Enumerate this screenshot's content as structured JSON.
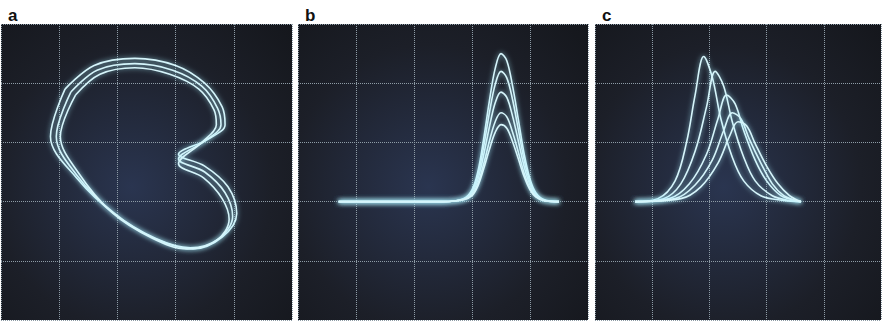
{
  "chart_data": [
    {
      "type": "line",
      "title": "a",
      "grid": true,
      "tick_labels": false,
      "marker": "none",
      "color": "#d6f5fb",
      "xlim": [
        -3,
        2
      ],
      "ylim": [
        -3,
        2
      ],
      "xticks": [
        -3,
        -2,
        -1,
        0,
        1,
        2
      ],
      "yticks": [
        -3,
        -2,
        -1,
        0,
        1,
        2
      ],
      "series": [
        {
          "x": [
            -1.9,
            -1.4,
            -0.7,
            0,
            0.5,
            0.8,
            0.85,
            0.55,
            0.05,
            0.5,
            0.9,
            1.05,
            0.8,
            0.3,
            -0.3,
            -1.0,
            -1.7,
            -2.15,
            -1.9
          ],
          "values": [
            0.9,
            1.3,
            1.42,
            1.3,
            1.0,
            0.6,
            0.3,
            0.05,
            -0.2,
            -0.4,
            -0.75,
            -1.2,
            -1.6,
            -1.8,
            -1.65,
            -1.25,
            -0.6,
            0.1,
            0.9
          ]
        },
        {
          "x": [
            -1.8,
            -1.35,
            -0.7,
            -0.05,
            0.45,
            0.72,
            0.78,
            0.5,
            0.05,
            0.5,
            0.85,
            0.98,
            0.75,
            0.25,
            -0.35,
            -1.05,
            -1.7,
            -2.05,
            -1.8
          ],
          "values": [
            0.85,
            1.22,
            1.33,
            1.22,
            0.95,
            0.58,
            0.3,
            0.02,
            -0.28,
            -0.5,
            -0.85,
            -1.25,
            -1.62,
            -1.78,
            -1.62,
            -1.2,
            -0.55,
            0.1,
            0.85
          ]
        },
        {
          "x": [
            -1.72,
            -1.3,
            -0.7,
            -0.1,
            0.4,
            0.66,
            0.7,
            0.45,
            0.05,
            0.48,
            0.8,
            0.92,
            0.7,
            0.2,
            -0.4,
            -1.1,
            -1.68,
            -1.98,
            -1.72
          ],
          "values": [
            0.8,
            1.15,
            1.26,
            1.15,
            0.9,
            0.55,
            0.3,
            0.0,
            -0.36,
            -0.6,
            -0.95,
            -1.3,
            -1.66,
            -1.8,
            -1.62,
            -1.18,
            -0.5,
            0.1,
            0.8
          ]
        }
      ]
    },
    {
      "type": "line",
      "title": "b",
      "grid": true,
      "tick_labels": false,
      "marker": "none",
      "color": "#d6f5fb",
      "xlim": [
        -2,
        3
      ],
      "ylim": [
        -2,
        3
      ],
      "xticks": [
        -2,
        -1,
        0,
        1,
        2,
        3
      ],
      "yticks": [
        -2,
        -1,
        0,
        1,
        2,
        3
      ],
      "series": [
        {
          "x": [
            -1.3,
            0.5,
            0.85,
            1.0,
            1.1,
            1.2,
            1.3,
            1.4,
            1.5,
            1.6,
            1.7,
            1.8,
            1.9,
            2.0,
            2.1,
            2.25,
            2.5
          ],
          "values": [
            0,
            0,
            0.05,
            0.2,
            0.5,
            1.05,
            1.7,
            2.25,
            2.5,
            2.38,
            1.95,
            1.38,
            0.8,
            0.38,
            0.15,
            0.03,
            0
          ]
        },
        {
          "x": [
            -1.3,
            0.5,
            0.85,
            1.0,
            1.1,
            1.2,
            1.3,
            1.4,
            1.5,
            1.6,
            1.7,
            1.8,
            1.9,
            2.0,
            2.1,
            2.25,
            2.5
          ],
          "values": [
            0,
            0,
            0.04,
            0.18,
            0.44,
            0.92,
            1.5,
            1.98,
            2.2,
            2.09,
            1.72,
            1.21,
            0.7,
            0.33,
            0.13,
            0.02,
            0
          ]
        },
        {
          "x": [
            -1.3,
            0.5,
            0.85,
            1.0,
            1.1,
            1.2,
            1.3,
            1.4,
            1.5,
            1.6,
            1.7,
            1.8,
            1.9,
            2.0,
            2.1,
            2.25,
            2.5
          ],
          "values": [
            0,
            0,
            0.04,
            0.15,
            0.37,
            0.78,
            1.26,
            1.67,
            1.85,
            1.76,
            1.44,
            1.02,
            0.59,
            0.28,
            0.11,
            0.02,
            0
          ]
        },
        {
          "x": [
            -1.3,
            0.5,
            0.85,
            1.0,
            1.1,
            1.2,
            1.3,
            1.4,
            1.5,
            1.6,
            1.7,
            1.8,
            1.9,
            2.0,
            2.1,
            2.25,
            2.5
          ],
          "values": [
            0,
            0,
            0.03,
            0.12,
            0.3,
            0.63,
            1.02,
            1.35,
            1.5,
            1.43,
            1.17,
            0.83,
            0.48,
            0.23,
            0.09,
            0.02,
            0
          ]
        },
        {
          "x": [
            -1.3,
            0.5,
            0.85,
            1.0,
            1.1,
            1.2,
            1.3,
            1.4,
            1.5,
            1.6,
            1.7,
            1.8,
            1.9,
            2.0,
            2.1,
            2.25,
            2.5
          ],
          "values": [
            0,
            0,
            0.03,
            0.1,
            0.26,
            0.55,
            0.88,
            1.17,
            1.3,
            1.24,
            1.01,
            0.72,
            0.42,
            0.2,
            0.08,
            0.01,
            0
          ]
        }
      ]
    },
    {
      "type": "line",
      "title": "c",
      "grid": true,
      "tick_labels": false,
      "marker": "none",
      "color": "#d6f5fb",
      "xlim": [
        -2,
        3
      ],
      "ylim": [
        -2,
        3
      ],
      "xticks": [
        -2,
        -1,
        0,
        1,
        2,
        3
      ],
      "yticks": [
        -2,
        -1,
        0,
        1,
        2,
        3
      ],
      "series": [
        {
          "x": [
            -1.3,
            -0.9,
            -0.6,
            -0.4,
            -0.25,
            -0.1,
            0.05,
            0.2,
            0.4,
            0.6,
            0.9,
            1.3,
            1.6
          ],
          "values": [
            0,
            0.05,
            0.35,
            1.0,
            1.8,
            2.45,
            2.1,
            1.4,
            0.75,
            0.35,
            0.1,
            0.02,
            0
          ]
        },
        {
          "x": [
            -1.3,
            -0.8,
            -0.5,
            -0.25,
            -0.05,
            0.1,
            0.25,
            0.4,
            0.6,
            0.8,
            1.1,
            1.4,
            1.6
          ],
          "values": [
            0,
            0.05,
            0.3,
            0.85,
            1.6,
            2.2,
            1.95,
            1.35,
            0.75,
            0.35,
            0.1,
            0.02,
            0
          ]
        },
        {
          "x": [
            -1.3,
            -0.7,
            -0.35,
            -0.05,
            0.15,
            0.3,
            0.45,
            0.6,
            0.8,
            1.0,
            1.25,
            1.5,
            1.6
          ],
          "values": [
            0,
            0.05,
            0.3,
            0.8,
            1.4,
            1.8,
            1.65,
            1.2,
            0.7,
            0.35,
            0.1,
            0.02,
            0
          ]
        },
        {
          "x": [
            -1.3,
            -0.6,
            -0.25,
            0.05,
            0.25,
            0.4,
            0.55,
            0.7,
            0.9,
            1.1,
            1.3,
            1.5,
            1.6
          ],
          "values": [
            0,
            0.05,
            0.28,
            0.7,
            1.2,
            1.5,
            1.4,
            1.05,
            0.65,
            0.3,
            0.1,
            0.02,
            0
          ]
        },
        {
          "x": [
            -1.3,
            -0.5,
            -0.15,
            0.15,
            0.35,
            0.5,
            0.65,
            0.8,
            1.0,
            1.2,
            1.4,
            1.55,
            1.6
          ],
          "values": [
            0,
            0.05,
            0.25,
            0.65,
            1.1,
            1.35,
            1.28,
            0.98,
            0.6,
            0.3,
            0.1,
            0.02,
            0
          ]
        }
      ]
    }
  ]
}
